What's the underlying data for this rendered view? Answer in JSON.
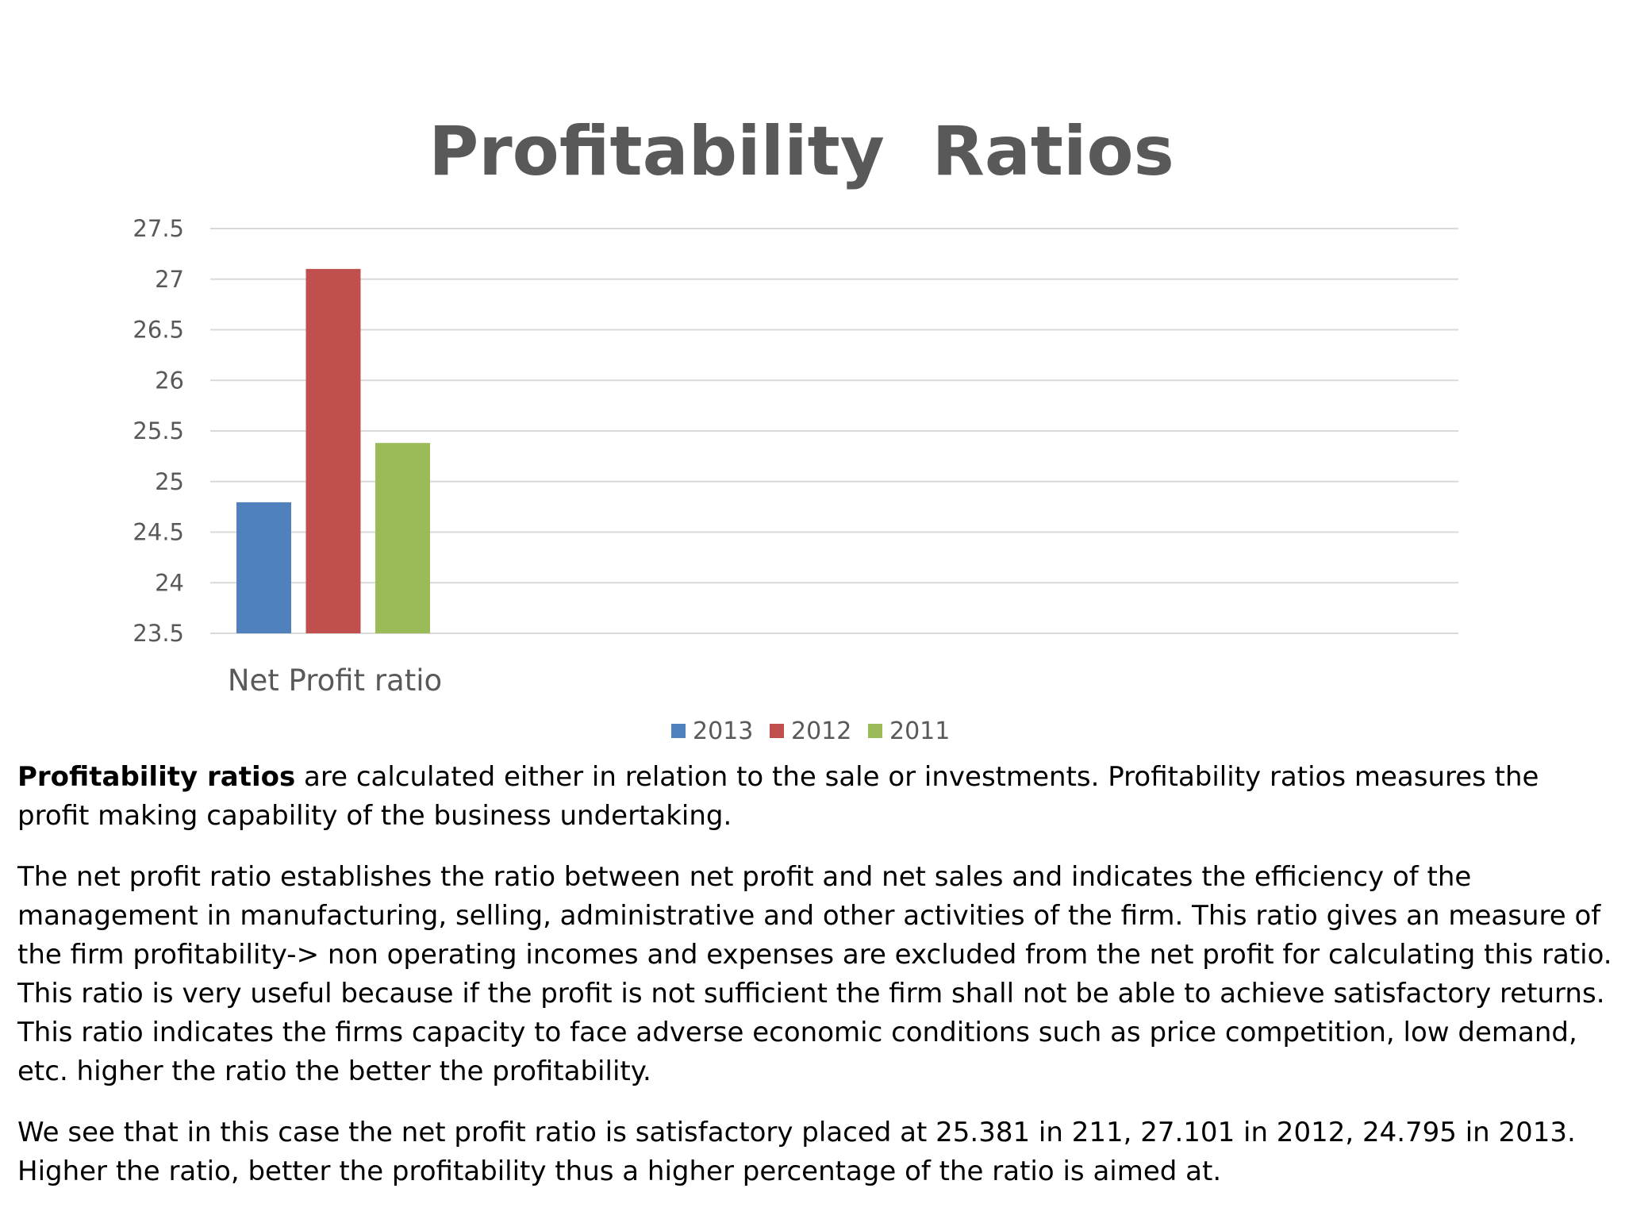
{
  "chart_data": {
    "type": "bar",
    "title": "Profitability  Ratios",
    "categories": [
      "Net Profit ratio"
    ],
    "series": [
      {
        "name": "2013",
        "values": [
          24.795
        ],
        "color": "#4f81bd"
      },
      {
        "name": "2012",
        "values": [
          27.101
        ],
        "color": "#c0504d"
      },
      {
        "name": "2011",
        "values": [
          25.381
        ],
        "color": "#9bbb59"
      }
    ],
    "ylim": [
      23.5,
      27.5
    ],
    "yticks": [
      "27.5",
      "27",
      "26.5",
      "26",
      "25.5",
      "25",
      "24.5",
      "24",
      "23.5"
    ],
    "grid": true,
    "legend_position": "bottom"
  },
  "text": {
    "p1_bold": "Profitability ratios",
    "p1_rest": " are calculated either in relation to the sale or investments. Profitability ratios measures the profit making capability of the business undertaking.",
    "p2": "The net profit ratio establishes the ratio between net profit and net sales and indicates the efficiency of the management in manufacturing, selling, administrative and other activities of the firm. This ratio gives an measure of the firm profitability-> non operating incomes and expenses are excluded from the net profit for calculating this ratio. This ratio is very useful because if the profit is not sufficient the firm shall not be able to achieve satisfactory returns. This ratio indicates the firms capacity to face adverse economic conditions such as price competition, low demand, etc. higher the ratio the better the profitability.",
    "p3": "We see that in this case the net profit ratio is satisfactory placed at 25.381 in 211, 27.101 in 2012, 24.795 in 2013. Higher the ratio, better the profitability thus a higher percentage of the ratio is aimed at."
  }
}
